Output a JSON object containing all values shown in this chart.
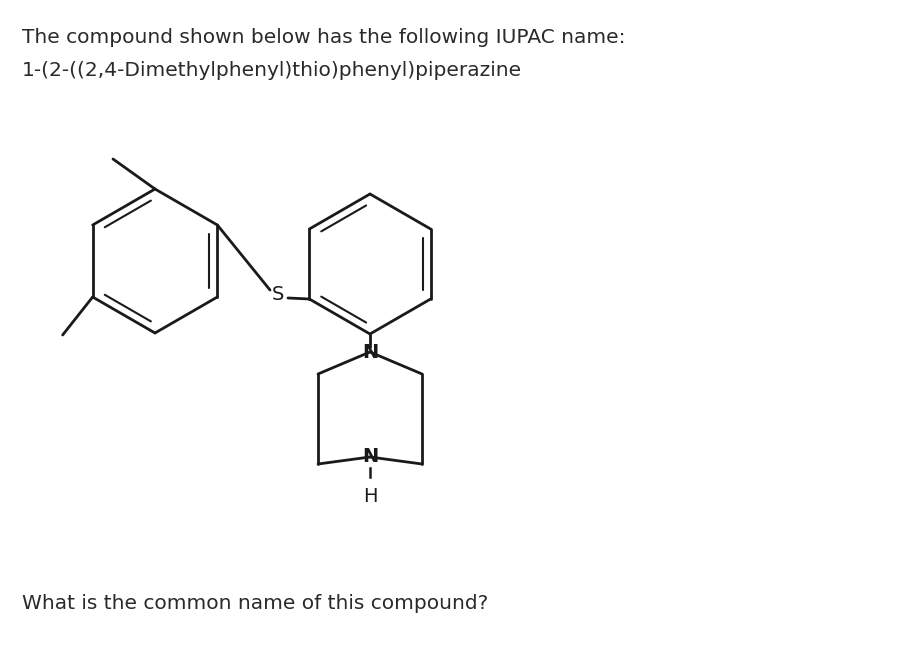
{
  "title_line1": "The compound shown below has the following IUPAC name:",
  "title_line2": "1-(2-((2,4-Dimethylphenyl)thio)phenyl)piperazine",
  "question": "What is the common name of this compound?",
  "bg_color": "#ffffff",
  "text_color": "#2a2a2a",
  "bond_color": "#1a1a1a",
  "atom_color": "#1a1a1a",
  "font_size_title": 14.5,
  "font_size_atom": 13.5
}
